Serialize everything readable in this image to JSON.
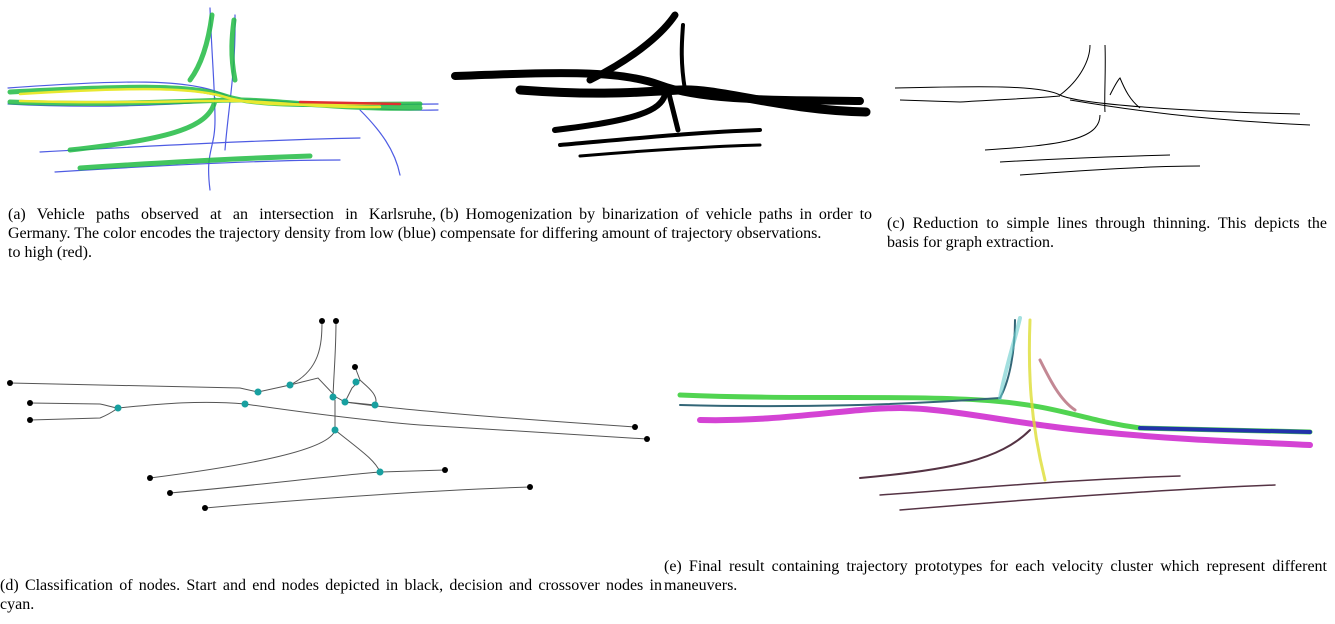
{
  "subfigures": [
    {
      "label": "(a)",
      "caption": "Vehicle paths observed at an intersection in Karlsruhe, Germany. The color encodes the trajectory density from low (blue) to high (red)."
    },
    {
      "label": "(b)",
      "caption": "Homogenization by binarization of vehicle paths in order to compensate for differing amount of trajectory observations."
    },
    {
      "label": "(c)",
      "caption": "Reduction to simple lines through thinning. This depicts the basis for graph extraction."
    },
    {
      "label": "(d)",
      "caption": "Classification of nodes. Start and end nodes depicted in black, decision and crossover nodes in cyan."
    },
    {
      "label": "(e)",
      "caption": "Final result containing trajectory prototypes for each velocity cluster which represent different maneuvers."
    }
  ]
}
